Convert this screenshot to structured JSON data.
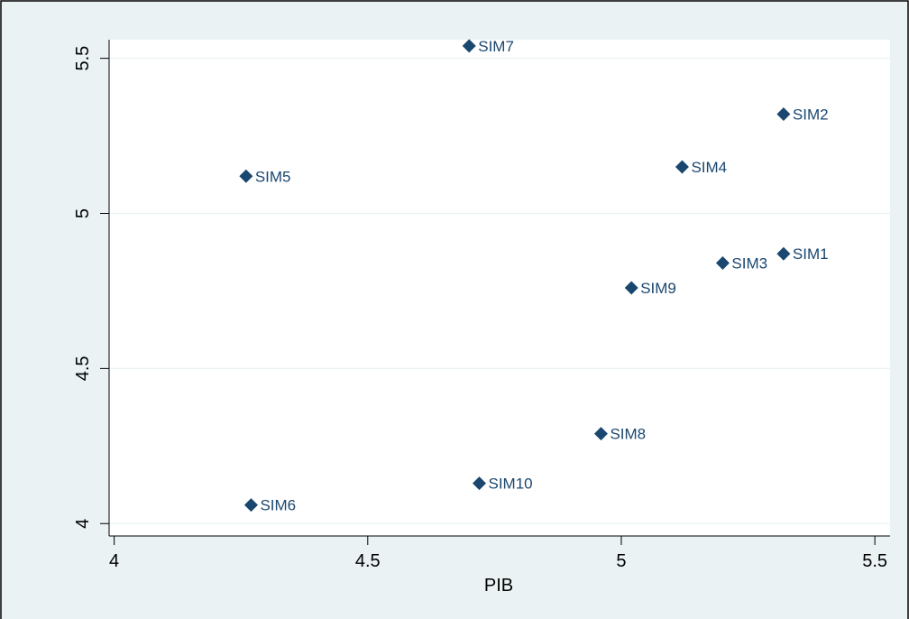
{
  "chart_data": {
    "type": "scatter",
    "title": "",
    "xlabel": "PIB",
    "ylabel": "",
    "xlim": [
      3.99,
      5.53
    ],
    "ylim": [
      3.96,
      5.56
    ],
    "xticks": [
      4,
      4.5,
      5,
      5.5
    ],
    "yticks": [
      4,
      4.5,
      5,
      5.5
    ],
    "xtick_labels": [
      "4",
      "4.5",
      "5",
      "5.5"
    ],
    "ytick_labels": [
      "4",
      "4.5",
      "5",
      "5.5"
    ],
    "grid": true,
    "marker": "diamond",
    "colors": {
      "marker": "#1a476f",
      "label": "#1a476f",
      "background": "#eaf2f3",
      "plot_background": "#ffffff",
      "grid": "#eaf2f3"
    },
    "points": [
      {
        "label": "SIM1",
        "x": 5.32,
        "y": 4.87
      },
      {
        "label": "SIM2",
        "x": 5.32,
        "y": 5.32
      },
      {
        "label": "SIM3",
        "x": 5.2,
        "y": 4.84
      },
      {
        "label": "SIM4",
        "x": 5.12,
        "y": 5.15
      },
      {
        "label": "SIM5",
        "x": 4.26,
        "y": 5.12
      },
      {
        "label": "SIM6",
        "x": 4.27,
        "y": 4.06
      },
      {
        "label": "SIM7",
        "x": 4.7,
        "y": 5.54
      },
      {
        "label": "SIM8",
        "x": 4.96,
        "y": 4.29
      },
      {
        "label": "SIM9",
        "x": 5.02,
        "y": 4.76
      },
      {
        "label": "SIM10",
        "x": 4.72,
        "y": 4.13
      }
    ]
  }
}
